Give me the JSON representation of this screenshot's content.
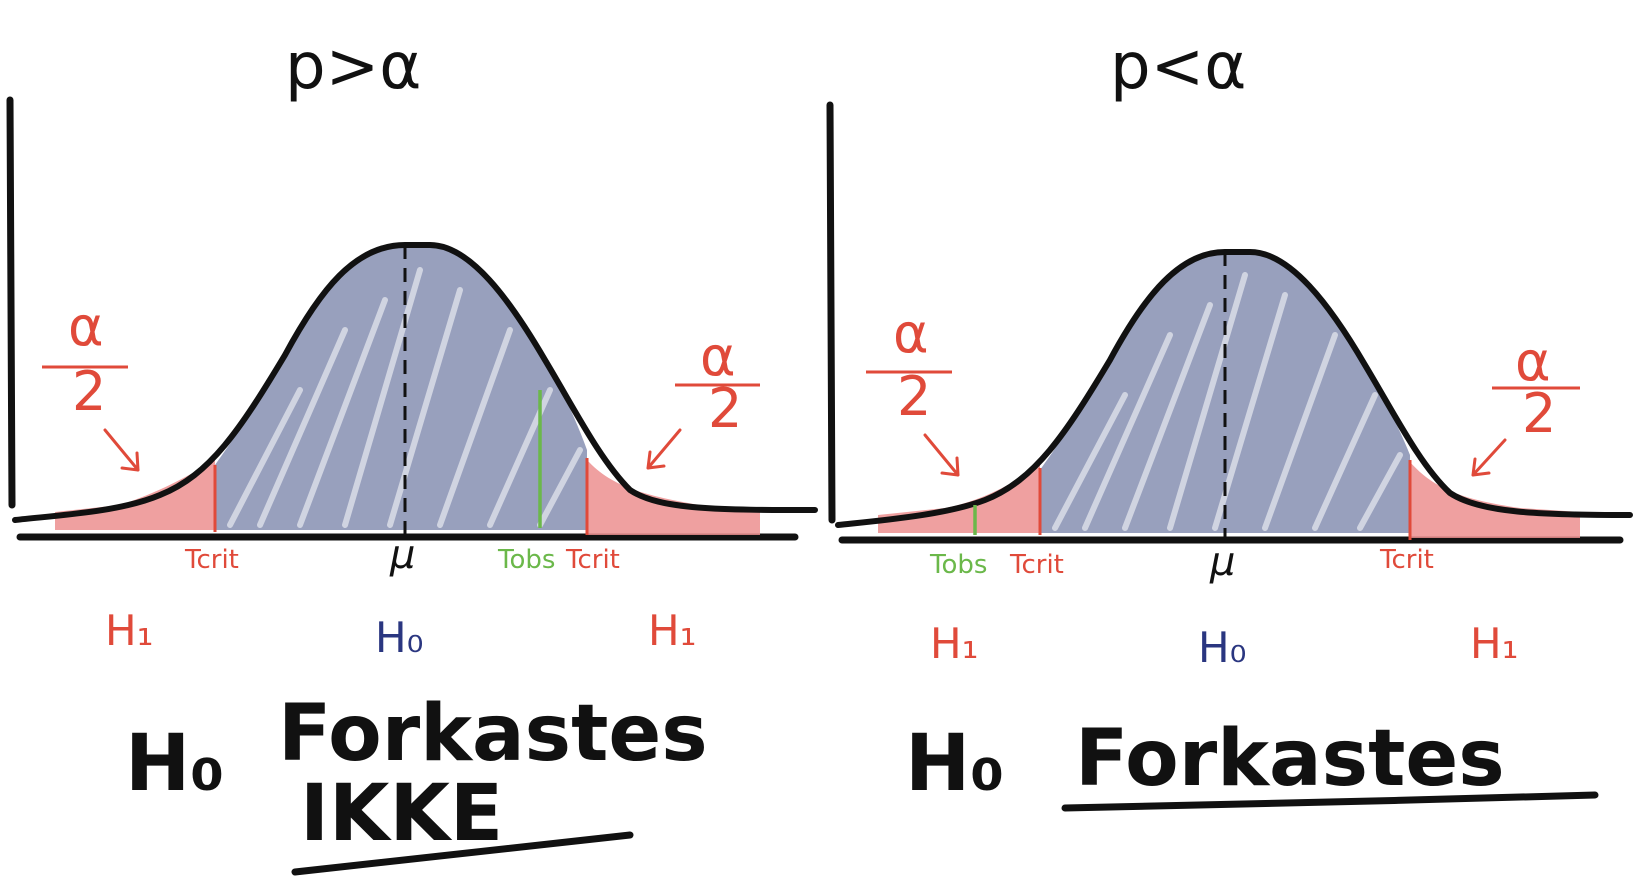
{
  "colors": {
    "ink": "#111111",
    "h0_area": "#8d96b6",
    "rejection_area": "#ec8f8f",
    "critical": "#e04a3a",
    "observed": "#6bb84a",
    "h0_label": "#2a3680",
    "h1_label": "#e04a3a"
  },
  "panels": [
    {
      "title": "p>α",
      "alpha_num": "α",
      "alpha_den": "2",
      "label_tcrit_left": "Tcrit",
      "label_tcrit_right": "Tcrit",
      "label_tobs": "Tobs",
      "label_mu": "μ",
      "label_h1_left": "H₁",
      "label_h0": "H₀",
      "label_h1_right": "H₁",
      "conclusion_h": "H₀",
      "conclusion_word": "Forkastes",
      "conclusion_neg": "IKKE",
      "tobs_position": "right, inside acceptance region"
    },
    {
      "title": "p<α",
      "alpha_num": "α",
      "alpha_den": "2",
      "label_tobs": "Tobs",
      "label_tcrit_left": "Tcrit",
      "label_mu": "μ",
      "label_tcrit_right": "Tcrit",
      "label_h1_left": "H₁",
      "label_h0": "H₀",
      "label_h1_right": "H₁",
      "conclusion_h": "H₀",
      "conclusion_word": "Forkastes",
      "tobs_position": "left, inside rejection region"
    }
  ]
}
